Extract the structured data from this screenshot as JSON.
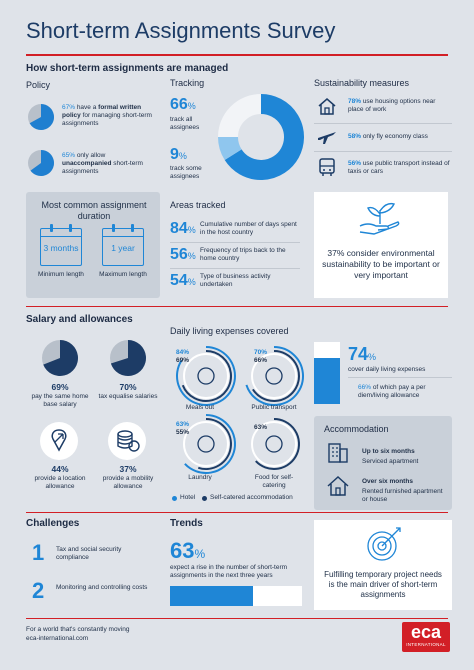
{
  "title": "Short-term Assignments Survey",
  "section1": {
    "heading": "How short-term assignments are managed",
    "policy": {
      "label": "Policy",
      "items": [
        {
          "pct": "67",
          "pre": " have a ",
          "bold": "formal written policy",
          "post": " for managing short-term assignments",
          "value": 67
        },
        {
          "pct": "65",
          "pre": " only allow ",
          "bold": "unaccompanied",
          "post": " short-term assignments",
          "value": 65
        }
      ]
    },
    "tracking": {
      "label": "Tracking",
      "items": [
        {
          "num": "66",
          "text": "track all assignees",
          "value": 66
        },
        {
          "num": "9",
          "text": "track some assignees",
          "value": 9
        }
      ]
    },
    "sustainability": {
      "label": "Sustainability measures",
      "items": [
        {
          "pct": "78%",
          "text": " use housing options near place of work",
          "icon": "house-icon"
        },
        {
          "pct": "58%",
          "text": " only fly economy class",
          "icon": "plane-icon"
        },
        {
          "pct": "56%",
          "text": " use public transport instead of taxis or cars",
          "icon": "bus-icon"
        }
      ]
    },
    "duration": {
      "label": "Most common assignment duration",
      "min_value": "3 months",
      "min_label": "Minimum length",
      "max_value": "1 year",
      "max_label": "Maximum length"
    },
    "areas": {
      "label": "Areas tracked",
      "items": [
        {
          "num": "84",
          "text": "Cumulative number of days spent in the host country"
        },
        {
          "num": "56",
          "text": "Frequency of trips back to the home country"
        },
        {
          "num": "54",
          "text": "Type of business activity undertaken"
        }
      ]
    },
    "env": {
      "text": "37% consider environmental sustainability to be important or very important",
      "icon": "plant-in-hand-icon"
    }
  },
  "section2": {
    "heading": "Salary and allowances",
    "salary": [
      {
        "pct": "69%",
        "text": "pay the same home base salary",
        "value": 69,
        "icon": "pie-icon"
      },
      {
        "pct": "70%",
        "text": "tax equalise salaries",
        "value": 70,
        "icon": "pie-icon"
      },
      {
        "pct": "44%",
        "text": "provide a location allowance",
        "icon": "location-pin-icon"
      },
      {
        "pct": "37%",
        "text": "provide a mobility allowance",
        "icon": "coins-icon"
      }
    ],
    "living": {
      "label": "Daily living expenses covered",
      "items": [
        {
          "name": "Meals out",
          "hotel": "84%",
          "self": "69%",
          "hotel_value": 84,
          "self_value": 69,
          "icon": "cloche-icon"
        },
        {
          "name": "Public transport",
          "hotel": "70%",
          "self": "66%",
          "hotel_value": 70,
          "self_value": 66,
          "icon": "bus-icon"
        },
        {
          "name": "Laundry",
          "hotel": "63%",
          "self": "55%",
          "hotel_value": 63,
          "self_value": 55,
          "icon": "washing-machine-icon"
        },
        {
          "name": "Food for self-catering",
          "hotel": "",
          "self": "63%",
          "hotel_value": 0,
          "self_value": 63,
          "icon": "grocery-bag-icon"
        }
      ],
      "legend_hotel": "Hotel",
      "legend_self": "Self-catered accommodation"
    },
    "cover": {
      "pct": "74",
      "text": "cover daily living expenses",
      "sub_pct": "66%",
      "sub_text": " of which pay a per diem/living allowance",
      "value": 74
    },
    "accommodation": {
      "label": "Accommodation",
      "items": [
        {
          "title": "Up to six months",
          "text": "Serviced apartment",
          "icon": "apartment-icon"
        },
        {
          "title": "Over six months",
          "text": "Rented furnished apartment or house",
          "icon": "house-icon"
        }
      ]
    }
  },
  "section3": {
    "challenges": {
      "label": "Challenges",
      "items": [
        {
          "num": "1",
          "text": "Tax and social security compliance"
        },
        {
          "num": "2",
          "text": "Monitoring and controlling costs"
        }
      ]
    },
    "trends": {
      "label": "Trends",
      "pct": "63",
      "text": "expect a rise in the number of short-term assignments in the next three years",
      "value": 63
    },
    "target": {
      "text": "Fulfilling temporary project needs is the main driver of short-term assignments",
      "icon": "target-icon"
    }
  },
  "footer": {
    "tagline": "For a world that's constantly moving",
    "url": "eca-international.com",
    "logo": "eca",
    "logo_sub": "INTERNATIONAL"
  },
  "colors": {
    "blue": "#1f86d6",
    "navy": "#1d3c66",
    "red": "#d21f26",
    "panel": "#c9d0d9"
  }
}
